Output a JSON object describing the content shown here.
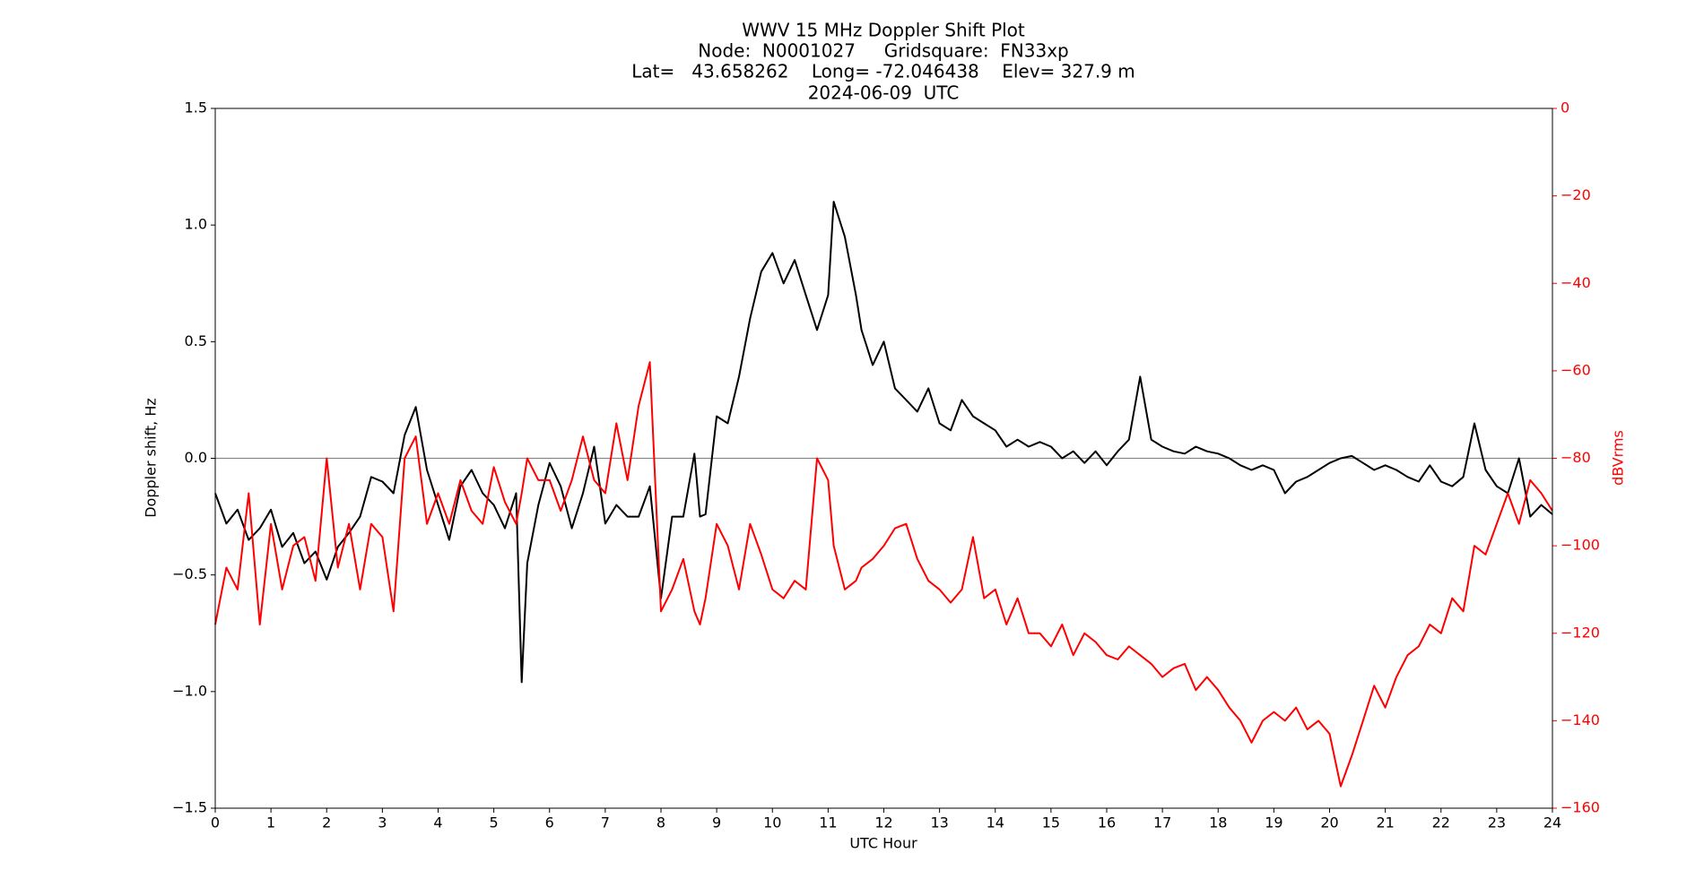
{
  "chart_data": {
    "type": "line",
    "title": [
      "WWV 15 MHz Doppler Shift Plot",
      "Node:  N0001027     Gridsquare:  FN33xp",
      "Lat=   43.658262    Long= -72.046438    Elev= 327.9 m",
      "2024-06-09  UTC"
    ],
    "xlabel": "UTC Hour",
    "ylabel": "Doppler shift, Hz",
    "y2label": "dBVrms",
    "x": [
      0,
      0.2,
      0.4,
      0.6,
      0.8,
      1.0,
      1.2,
      1.4,
      1.6,
      1.8,
      2.0,
      2.2,
      2.4,
      2.6,
      2.8,
      3.0,
      3.2,
      3.4,
      3.6,
      3.8,
      4.0,
      4.2,
      4.4,
      4.6,
      4.8,
      5.0,
      5.2,
      5.4,
      5.5,
      5.6,
      5.8,
      6.0,
      6.2,
      6.4,
      6.6,
      6.8,
      7.0,
      7.2,
      7.4,
      7.6,
      7.8,
      8.0,
      8.2,
      8.4,
      8.6,
      8.7,
      8.8,
      9.0,
      9.2,
      9.4,
      9.6,
      9.8,
      10.0,
      10.2,
      10.4,
      10.6,
      10.8,
      11.0,
      11.1,
      11.3,
      11.5,
      11.6,
      11.8,
      12.0,
      12.2,
      12.4,
      12.6,
      12.8,
      13.0,
      13.2,
      13.4,
      13.6,
      13.8,
      14.0,
      14.2,
      14.4,
      14.6,
      14.8,
      15.0,
      15.2,
      15.4,
      15.6,
      15.8,
      16.0,
      16.2,
      16.4,
      16.6,
      16.8,
      17.0,
      17.2,
      17.4,
      17.6,
      17.8,
      18.0,
      18.2,
      18.4,
      18.6,
      18.8,
      19.0,
      19.2,
      19.4,
      19.6,
      19.8,
      20.0,
      20.2,
      20.4,
      20.6,
      20.8,
      21.0,
      21.2,
      21.4,
      21.6,
      21.8,
      22.0,
      22.2,
      22.4,
      22.6,
      22.8,
      23.0,
      23.2,
      23.4,
      23.6,
      23.8,
      24.0
    ],
    "series": [
      {
        "name": "Doppler shift",
        "color": "#000000",
        "axis": "y",
        "values": [
          -0.15,
          -0.28,
          -0.22,
          -0.35,
          -0.3,
          -0.22,
          -0.38,
          -0.32,
          -0.45,
          -0.4,
          -0.52,
          -0.38,
          -0.32,
          -0.25,
          -0.08,
          -0.1,
          -0.15,
          0.1,
          0.22,
          -0.05,
          -0.2,
          -0.35,
          -0.12,
          -0.05,
          -0.15,
          -0.2,
          -0.3,
          -0.15,
          -0.96,
          -0.45,
          -0.2,
          -0.02,
          -0.12,
          -0.3,
          -0.15,
          0.05,
          -0.28,
          -0.2,
          -0.25,
          -0.25,
          -0.12,
          -0.6,
          -0.25,
          -0.25,
          0.02,
          -0.25,
          -0.24,
          0.18,
          0.15,
          0.35,
          0.6,
          0.8,
          0.88,
          0.75,
          0.85,
          0.7,
          0.55,
          0.7,
          1.1,
          0.95,
          0.7,
          0.55,
          0.4,
          0.5,
          0.3,
          0.25,
          0.2,
          0.3,
          0.15,
          0.12,
          0.25,
          0.18,
          0.15,
          0.12,
          0.05,
          0.08,
          0.05,
          0.07,
          0.05,
          0.0,
          0.03,
          -0.02,
          0.03,
          -0.03,
          0.03,
          0.08,
          0.35,
          0.08,
          0.05,
          0.03,
          0.02,
          0.05,
          0.03,
          0.02,
          0.0,
          -0.03,
          -0.05,
          -0.03,
          -0.05,
          -0.15,
          -0.1,
          -0.08,
          -0.05,
          -0.02,
          0.0,
          0.01,
          -0.02,
          -0.05,
          -0.03,
          -0.05,
          -0.08,
          -0.1,
          -0.03,
          -0.1,
          -0.12,
          -0.08,
          0.15,
          -0.05,
          -0.12,
          -0.15,
          0.0,
          -0.25,
          -0.2,
          -0.24
        ]
      },
      {
        "name": "dBVrms",
        "color": "#ff0000",
        "axis": "y2",
        "values": [
          -118,
          -105,
          -110,
          -88,
          -118,
          -95,
          -110,
          -100,
          -98,
          -108,
          -80,
          -105,
          -95,
          -110,
          -95,
          -98,
          -115,
          -80,
          -75,
          -95,
          -88,
          -95,
          -85,
          -92,
          -95,
          -82,
          -90,
          -95,
          -88,
          -80,
          -85,
          -85,
          -92,
          -85,
          -75,
          -85,
          -88,
          -72,
          -85,
          -68,
          -58,
          -115,
          -110,
          -103,
          -115,
          -118,
          -112,
          -95,
          -100,
          -110,
          -95,
          -102,
          -110,
          -112,
          -108,
          -110,
          -80,
          -85,
          -100,
          -110,
          -108,
          -105,
          -103,
          -100,
          -96,
          -95,
          -103,
          -108,
          -110,
          -113,
          -110,
          -98,
          -112,
          -110,
          -118,
          -112,
          -120,
          -120,
          -123,
          -118,
          -125,
          -120,
          -122,
          -125,
          -126,
          -123,
          -125,
          -127,
          -130,
          -128,
          -127,
          -133,
          -130,
          -133,
          -137,
          -140,
          -145,
          -140,
          -138,
          -140,
          -137,
          -142,
          -140,
          -143,
          -155,
          -148,
          -140,
          -132,
          -137,
          -130,
          -125,
          -123,
          -118,
          -120,
          -112,
          -115,
          -100,
          -102,
          -95,
          -88,
          -95,
          -85,
          -88,
          -92
        ]
      }
    ],
    "xlim": [
      0,
      24
    ],
    "xticks": [
      0,
      1,
      2,
      3,
      4,
      5,
      6,
      7,
      8,
      9,
      10,
      11,
      12,
      13,
      14,
      15,
      16,
      17,
      18,
      19,
      20,
      21,
      22,
      23,
      24
    ],
    "ylim": [
      -1.5,
      1.5
    ],
    "yticks": [
      {
        "value": -1.5,
        "label": "−1.5"
      },
      {
        "value": -1.0,
        "label": "−1.0"
      },
      {
        "value": -0.5,
        "label": "−0.5"
      },
      {
        "value": 0,
        "label": "0.0"
      },
      0.5,
      {
        "value": 1.0,
        "label": "1.0"
      },
      1.5
    ],
    "y2lim": [
      -160,
      0
    ],
    "y2ticks": [
      {
        "value": -160,
        "label": "−160"
      },
      {
        "value": -140,
        "label": "−140"
      },
      {
        "value": -120,
        "label": "−120"
      },
      {
        "value": -100,
        "label": "−100"
      },
      {
        "value": -80,
        "label": "−80"
      },
      {
        "value": -60,
        "label": "−60"
      },
      {
        "value": -40,
        "label": "−40"
      },
      {
        "value": -20,
        "label": "−20"
      },
      0
    ],
    "hlines": [
      0
    ]
  }
}
